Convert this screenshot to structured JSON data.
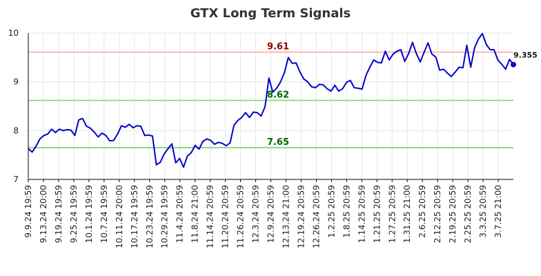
{
  "chart_data": {
    "type": "line",
    "title": "GTX Long Term Signals",
    "xlabel": "",
    "ylabel": "",
    "ylim": [
      7,
      10
    ],
    "y_ticks": [
      7,
      8,
      9,
      10
    ],
    "x_tick_labels": [
      "9.9.24 19:59",
      "9.13.24 20:00",
      "9.19.24 19:59",
      "9.25.24 19:59",
      "10.1.24 19:59",
      "10.7.24 19:59",
      "10.11.24 20:00",
      "10.17.24 19:59",
      "10.23.24 19:59",
      "10.29.24 19:59",
      "11.4.24 20:59",
      "11.8.24 21:00",
      "11.14.24 20:59",
      "11.20.24 20:59",
      "11.26.24 20:59",
      "12.3.24 20:59",
      "12.9.24 20:59",
      "12.13.24 21:00",
      "12.19.24 20:59",
      "12.26.24 20:59",
      "1.2.25 20:59",
      "1.8.25 20:59",
      "1.14.25 20:59",
      "1.21.25 20:59",
      "1.27.25 20:59",
      "1.31.25 21:00",
      "2.6.25 20:59",
      "2.12.25 20:59",
      "2.19.25 20:59",
      "2.25.25 20:59",
      "3.3.25 20:59",
      "3.7.25 21:00"
    ],
    "grid": true,
    "reference_lines": [
      {
        "value": 9.61,
        "label": "9.61",
        "color": "#ffb3b3",
        "label_color": "#8b0000"
      },
      {
        "value": 8.62,
        "label": "8.62",
        "color": "#7fdc7f",
        "label_color": "#006400"
      },
      {
        "value": 7.65,
        "label": "7.65",
        "color": "#7fdc7f",
        "label_color": "#006400"
      }
    ],
    "series": [
      {
        "color": "#0000cc",
        "values": [
          7.63,
          7.56,
          7.68,
          7.83,
          7.9,
          7.93,
          8.03,
          7.96,
          8.03,
          8.0,
          8.02,
          8.01,
          7.9,
          8.22,
          8.25,
          8.09,
          8.05,
          7.97,
          7.87,
          7.95,
          7.9,
          7.79,
          7.8,
          7.93,
          8.1,
          8.07,
          8.13,
          8.06,
          8.1,
          8.09,
          7.9,
          7.91,
          7.89,
          7.3,
          7.35,
          7.52,
          7.63,
          7.73,
          7.34,
          7.43,
          7.25,
          7.48,
          7.55,
          7.7,
          7.62,
          7.78,
          7.83,
          7.8,
          7.72,
          7.76,
          7.74,
          7.69,
          7.75,
          8.11,
          8.21,
          8.27,
          8.37,
          8.27,
          8.38,
          8.37,
          8.3,
          8.49,
          9.08,
          8.79,
          8.87,
          9.0,
          9.19,
          9.5,
          9.38,
          9.39,
          9.2,
          9.06,
          9.0,
          8.9,
          8.88,
          8.95,
          8.94,
          8.86,
          8.81,
          8.93,
          8.81,
          8.86,
          8.99,
          9.03,
          8.88,
          8.87,
          8.85,
          9.13,
          9.3,
          9.45,
          9.4,
          9.39,
          9.63,
          9.45,
          9.57,
          9.63,
          9.66,
          9.42,
          9.58,
          9.81,
          9.58,
          9.41,
          9.61,
          9.8,
          9.57,
          9.51,
          9.24,
          9.26,
          9.18,
          9.11,
          9.2,
          9.3,
          9.29,
          9.75,
          9.3,
          9.7,
          9.88,
          9.99,
          9.77,
          9.66,
          9.66,
          9.45,
          9.36,
          9.26,
          9.46,
          9.355
        ]
      }
    ],
    "last_value_label": "9.355"
  }
}
